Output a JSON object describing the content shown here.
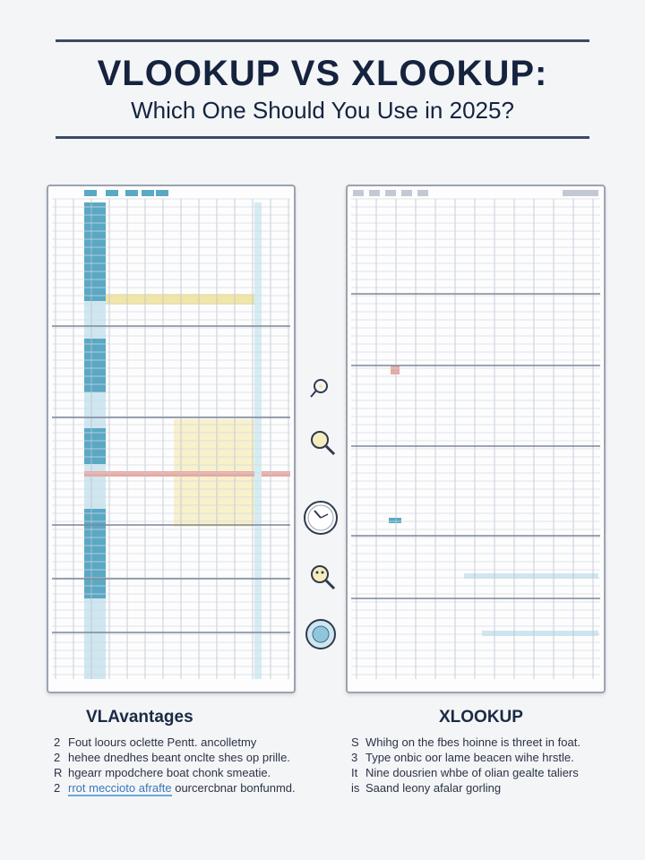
{
  "header": {
    "title": "VLOOKUP VS XLOOKUP:",
    "subtitle": "Which One Should You Use  in 2025?"
  },
  "left_column": {
    "heading": "VLAvantages",
    "items": [
      {
        "num": "2",
        "text": "Fout loours oclette Pentt. ancolletmy"
      },
      {
        "num": "2",
        "text": "hehee dnedhes beant onclte shes op prille."
      },
      {
        "num": "R",
        "text": "hgearr mpodchere boat chonk smeatie."
      },
      {
        "num": "2",
        "text_highlight": "rrot meccioto afrafte",
        "text": " ourcercbnar bonfunmd."
      }
    ]
  },
  "right_column": {
    "heading": "XLOOKUP",
    "items": [
      {
        "num": "S",
        "text": "Whihg on the fbes hoinne is threet in foat."
      },
      {
        "num": "3",
        "text": "Type onbic oor lame beacen wihe hrstle."
      },
      {
        "num": "It",
        "text": "Nine dousrien whbe of olian gealte taliers"
      },
      {
        "num": "is",
        "text": "Saand leony afalar gorling"
      }
    ]
  },
  "icons": [
    "key-icon",
    "magnifier-icon",
    "clock-gauge-icon",
    "magnifier-icon",
    "circle-badge-icon"
  ],
  "colors": {
    "accent_teal": "#5aa8c4",
    "accent_yellow": "#f2e6a6",
    "accent_red": "#e9a8a2",
    "grid_line": "#b9c1cf",
    "rule": "#3c4a66"
  }
}
